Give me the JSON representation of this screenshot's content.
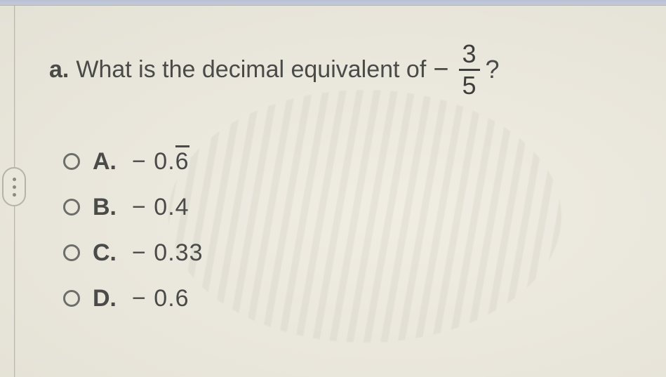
{
  "question": {
    "part_letter": "a.",
    "prompt_text": "What is the decimal equivalent of",
    "minus_sign": "−",
    "fraction": {
      "numerator": "3",
      "denominator": "5"
    },
    "suffix": "?"
  },
  "choices": [
    {
      "letter": "A.",
      "prefix": "− 0.",
      "repeating_digit": "6",
      "has_overline": true
    },
    {
      "letter": "B.",
      "prefix": "− 0.4",
      "repeating_digit": "",
      "has_overline": false
    },
    {
      "letter": "C.",
      "prefix": "− 0.33",
      "repeating_digit": "",
      "has_overline": false
    },
    {
      "letter": "D.",
      "prefix": "− 0.6",
      "repeating_digit": "",
      "has_overline": false
    }
  ],
  "style": {
    "background_color": "#ebe8de",
    "text_color": "#4a4a48",
    "font_size_pt": 26,
    "radio_border_color": "#6d6d69"
  }
}
